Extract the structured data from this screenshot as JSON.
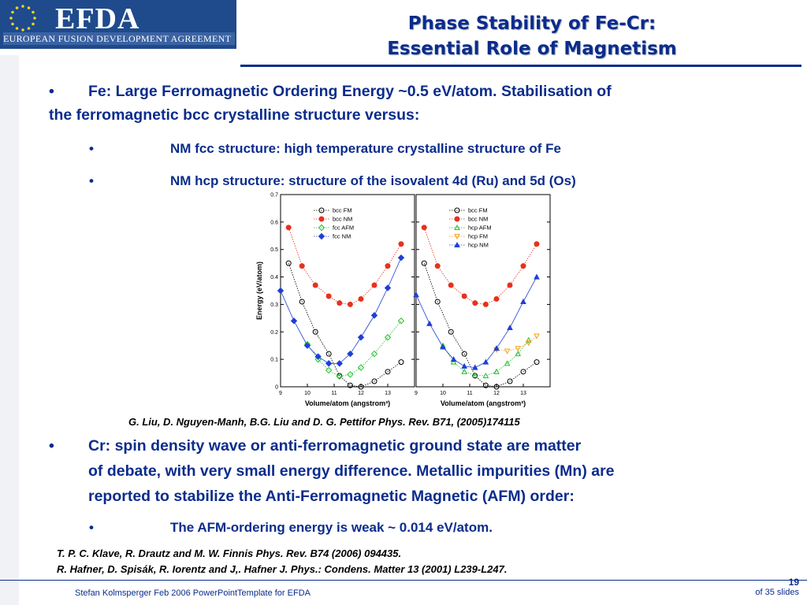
{
  "header": {
    "logo_text": "EFDA",
    "logo_subtitle": "EUROPEAN FUSION DEVELOPMENT AGREEMENT",
    "title_line1": "Phase Stability of Fe-Cr:",
    "title_line2": "Essential Role of Magnetism"
  },
  "bullets": {
    "fe_marker": "•",
    "fe_text_line1": "Fe: Large Ferromagnetic Ordering  Energy ~0.5 eV/atom.    Stabilisation of",
    "fe_text_line2": "the ferromagnetic bcc crystalline structure versus:",
    "sub1_marker": "•",
    "sub1_text": "NM fcc structure: high temperature crystalline structure of Fe",
    "sub2_marker": "•",
    "sub2_text": "NM hcp structure: structure of the isovalent 4d (Ru) and 5d (Os)",
    "citation_liu": "G. Liu, D. Nguyen-Manh, B.G. Liu and D. G. Pettifor Phys. Rev. B71, (2005)174115",
    "cr_marker": "•",
    "cr_line1": "Cr: spin density wave or anti-ferromagnetic ground state are matter",
    "cr_line2": "of debate, with very small energy difference. Metallic impurities (Mn) are",
    "cr_line3": "reported to stabilize the Anti-Ferromagnetic Magnetic (AFM) order:",
    "sub3_marker": "•",
    "sub3_text": "The AFM-ordering energy is weak ~ 0.014 eV/atom.",
    "ref1": "T. P. C. Klave, R. Drautz and M. W. Finnis Phys. Rev. B74 (2006) 094435.",
    "ref2": "R. Hafner, D. Spisák, R. Iorentz and J,. Hafner J. Phys.: Condens. Matter 13 (2001) L239-L247."
  },
  "footer": {
    "credit": "Stefan Kolmsperger Feb 2006 PowerPointTemplate for EFDA",
    "page_number": "19",
    "page_of": "of  35 slides"
  },
  "colors": {
    "title_blue": "#0b2c8c",
    "logo_blue": "#1f4a8c",
    "bcc_fm": "#000000",
    "bcc_nm": "#e8301e",
    "fcc_afm": "#22c02a",
    "fcc_nm": "#1f3fd6",
    "hcp_afm": "#22c02a",
    "hcp_fm": "#f2a413",
    "hcp_nm": "#1f3fd6"
  },
  "chart_data": [
    {
      "type": "scatter",
      "title": "",
      "xlabel": "Volume/atom (angstrom³)",
      "ylabel": "Energy (eV/atom)",
      "xlim": [
        9,
        14
      ],
      "ylim": [
        0,
        0.7
      ],
      "xticks": [
        "9",
        "10",
        "11",
        "12",
        "13"
      ],
      "yticks": [
        "0",
        "0.1",
        "0.2",
        "0.3",
        "0.4",
        "0.5",
        "0.6",
        "0.7"
      ],
      "legend_position": "top-left",
      "series": [
        {
          "name": "bcc FM",
          "marker": "open-circle",
          "color": "#000000",
          "x": [
            9.3,
            9.8,
            10.3,
            10.8,
            11.2,
            11.6,
            12.0,
            12.5,
            13.0,
            13.5
          ],
          "y": [
            0.45,
            0.31,
            0.2,
            0.12,
            0.04,
            0.005,
            0.0,
            0.02,
            0.055,
            0.09
          ]
        },
        {
          "name": "bcc NM",
          "marker": "filled-circle",
          "color": "#e8301e",
          "x": [
            9.3,
            9.8,
            10.3,
            10.8,
            11.2,
            11.6,
            12.0,
            12.5,
            13.0,
            13.5
          ],
          "y": [
            0.58,
            0.44,
            0.37,
            0.33,
            0.305,
            0.3,
            0.32,
            0.37,
            0.44,
            0.52
          ]
        },
        {
          "name": "fcc AFM",
          "marker": "open-diamond",
          "color": "#22c02a",
          "x": [
            10.0,
            10.4,
            10.8,
            11.2,
            11.6,
            12.0,
            12.5,
            13.0,
            13.5
          ],
          "y": [
            0.155,
            0.1,
            0.06,
            0.038,
            0.045,
            0.07,
            0.12,
            0.18,
            0.24
          ]
        },
        {
          "name": "fcc NM",
          "marker": "filled-diamond",
          "color": "#1f3fd6",
          "x": [
            9.0,
            9.5,
            10.0,
            10.4,
            10.8,
            11.2,
            11.6,
            12.0,
            12.5,
            13.0,
            13.5
          ],
          "y": [
            0.35,
            0.24,
            0.15,
            0.11,
            0.085,
            0.085,
            0.12,
            0.18,
            0.26,
            0.36,
            0.47
          ]
        }
      ]
    },
    {
      "type": "scatter",
      "title": "",
      "xlabel": "Volume/atom (angstrom³)",
      "ylabel": "Energy (eV/atom)",
      "xlim": [
        9,
        14
      ],
      "ylim": [
        0,
        0.7
      ],
      "xticks": [
        "9",
        "10",
        "11",
        "12",
        "13"
      ],
      "yticks": [
        "0",
        "0.1",
        "0.2",
        "0.3",
        "0.4",
        "0.5",
        "0.6",
        "0.7"
      ],
      "legend_position": "top-left",
      "series": [
        {
          "name": "bcc FM",
          "marker": "open-circle",
          "color": "#000000",
          "x": [
            9.3,
            9.8,
            10.3,
            10.8,
            11.2,
            11.6,
            12.0,
            12.5,
            13.0,
            13.5
          ],
          "y": [
            0.45,
            0.31,
            0.2,
            0.12,
            0.04,
            0.005,
            0.0,
            0.02,
            0.055,
            0.09
          ]
        },
        {
          "name": "bcc NM",
          "marker": "filled-circle",
          "color": "#e8301e",
          "x": [
            9.3,
            9.8,
            10.3,
            10.8,
            11.2,
            11.6,
            12.0,
            12.5,
            13.0,
            13.5
          ],
          "y": [
            0.58,
            0.44,
            0.37,
            0.33,
            0.305,
            0.3,
            0.32,
            0.37,
            0.44,
            0.52
          ]
        },
        {
          "name": "hcp AFM",
          "marker": "open-triangle-up",
          "color": "#22c02a",
          "x": [
            10.0,
            10.4,
            10.8,
            11.2,
            11.6,
            12.0,
            12.4,
            12.8,
            13.2
          ],
          "y": [
            0.15,
            0.09,
            0.055,
            0.042,
            0.04,
            0.055,
            0.085,
            0.12,
            0.17
          ]
        },
        {
          "name": "hcp FM",
          "marker": "open-triangle-down",
          "color": "#f2a413",
          "x": [
            12.0,
            12.4,
            12.8,
            13.2,
            13.5
          ],
          "y": [
            0.135,
            0.13,
            0.14,
            0.16,
            0.185
          ]
        },
        {
          "name": "hcp NM",
          "marker": "filled-triangle-up",
          "color": "#1f3fd6",
          "x": [
            9.0,
            9.5,
            10.0,
            10.4,
            10.8,
            11.2,
            11.6,
            12.0,
            12.5,
            13.0,
            13.5
          ],
          "y": [
            0.335,
            0.23,
            0.145,
            0.1,
            0.075,
            0.07,
            0.09,
            0.14,
            0.215,
            0.31,
            0.4
          ]
        }
      ]
    }
  ]
}
